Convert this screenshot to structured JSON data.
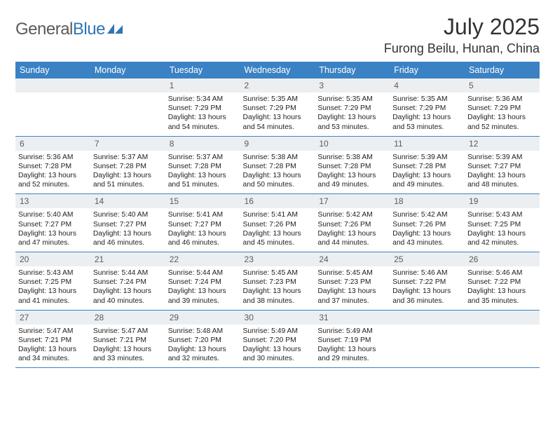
{
  "brand": {
    "name_a": "General",
    "name_b": "Blue"
  },
  "title": "July 2025",
  "location": "Furong Beilu, Hunan, China",
  "colors": {
    "header_bg": "#3b82c4",
    "header_text": "#ffffff",
    "daynum_bg": "#eceff1",
    "rule": "#3b82c4",
    "text": "#222222",
    "brand_gray": "#5a5a5a",
    "brand_blue": "#2d76b5"
  },
  "day_names": [
    "Sunday",
    "Monday",
    "Tuesday",
    "Wednesday",
    "Thursday",
    "Friday",
    "Saturday"
  ],
  "weeks": [
    [
      null,
      null,
      {
        "n": "1",
        "sr": "5:34 AM",
        "ss": "7:29 PM",
        "dl": "13 hours and 54 minutes."
      },
      {
        "n": "2",
        "sr": "5:35 AM",
        "ss": "7:29 PM",
        "dl": "13 hours and 54 minutes."
      },
      {
        "n": "3",
        "sr": "5:35 AM",
        "ss": "7:29 PM",
        "dl": "13 hours and 53 minutes."
      },
      {
        "n": "4",
        "sr": "5:35 AM",
        "ss": "7:29 PM",
        "dl": "13 hours and 53 minutes."
      },
      {
        "n": "5",
        "sr": "5:36 AM",
        "ss": "7:29 PM",
        "dl": "13 hours and 52 minutes."
      }
    ],
    [
      {
        "n": "6",
        "sr": "5:36 AM",
        "ss": "7:28 PM",
        "dl": "13 hours and 52 minutes."
      },
      {
        "n": "7",
        "sr": "5:37 AM",
        "ss": "7:28 PM",
        "dl": "13 hours and 51 minutes."
      },
      {
        "n": "8",
        "sr": "5:37 AM",
        "ss": "7:28 PM",
        "dl": "13 hours and 51 minutes."
      },
      {
        "n": "9",
        "sr": "5:38 AM",
        "ss": "7:28 PM",
        "dl": "13 hours and 50 minutes."
      },
      {
        "n": "10",
        "sr": "5:38 AM",
        "ss": "7:28 PM",
        "dl": "13 hours and 49 minutes."
      },
      {
        "n": "11",
        "sr": "5:39 AM",
        "ss": "7:28 PM",
        "dl": "13 hours and 49 minutes."
      },
      {
        "n": "12",
        "sr": "5:39 AM",
        "ss": "7:27 PM",
        "dl": "13 hours and 48 minutes."
      }
    ],
    [
      {
        "n": "13",
        "sr": "5:40 AM",
        "ss": "7:27 PM",
        "dl": "13 hours and 47 minutes."
      },
      {
        "n": "14",
        "sr": "5:40 AM",
        "ss": "7:27 PM",
        "dl": "13 hours and 46 minutes."
      },
      {
        "n": "15",
        "sr": "5:41 AM",
        "ss": "7:27 PM",
        "dl": "13 hours and 46 minutes."
      },
      {
        "n": "16",
        "sr": "5:41 AM",
        "ss": "7:26 PM",
        "dl": "13 hours and 45 minutes."
      },
      {
        "n": "17",
        "sr": "5:42 AM",
        "ss": "7:26 PM",
        "dl": "13 hours and 44 minutes."
      },
      {
        "n": "18",
        "sr": "5:42 AM",
        "ss": "7:26 PM",
        "dl": "13 hours and 43 minutes."
      },
      {
        "n": "19",
        "sr": "5:43 AM",
        "ss": "7:25 PM",
        "dl": "13 hours and 42 minutes."
      }
    ],
    [
      {
        "n": "20",
        "sr": "5:43 AM",
        "ss": "7:25 PM",
        "dl": "13 hours and 41 minutes."
      },
      {
        "n": "21",
        "sr": "5:44 AM",
        "ss": "7:24 PM",
        "dl": "13 hours and 40 minutes."
      },
      {
        "n": "22",
        "sr": "5:44 AM",
        "ss": "7:24 PM",
        "dl": "13 hours and 39 minutes."
      },
      {
        "n": "23",
        "sr": "5:45 AM",
        "ss": "7:23 PM",
        "dl": "13 hours and 38 minutes."
      },
      {
        "n": "24",
        "sr": "5:45 AM",
        "ss": "7:23 PM",
        "dl": "13 hours and 37 minutes."
      },
      {
        "n": "25",
        "sr": "5:46 AM",
        "ss": "7:22 PM",
        "dl": "13 hours and 36 minutes."
      },
      {
        "n": "26",
        "sr": "5:46 AM",
        "ss": "7:22 PM",
        "dl": "13 hours and 35 minutes."
      }
    ],
    [
      {
        "n": "27",
        "sr": "5:47 AM",
        "ss": "7:21 PM",
        "dl": "13 hours and 34 minutes."
      },
      {
        "n": "28",
        "sr": "5:47 AM",
        "ss": "7:21 PM",
        "dl": "13 hours and 33 minutes."
      },
      {
        "n": "29",
        "sr": "5:48 AM",
        "ss": "7:20 PM",
        "dl": "13 hours and 32 minutes."
      },
      {
        "n": "30",
        "sr": "5:49 AM",
        "ss": "7:20 PM",
        "dl": "13 hours and 30 minutes."
      },
      {
        "n": "31",
        "sr": "5:49 AM",
        "ss": "7:19 PM",
        "dl": "13 hours and 29 minutes."
      },
      null,
      null
    ]
  ],
  "labels": {
    "sunrise": "Sunrise:",
    "sunset": "Sunset:",
    "daylight": "Daylight:"
  }
}
